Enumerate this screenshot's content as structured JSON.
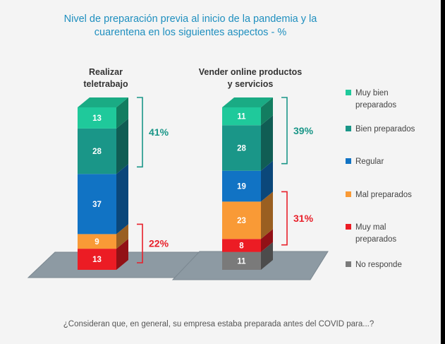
{
  "title_line1": "Nivel de preparación previa al inicio de la pandemia y la",
  "title_line2": "cuarentena en los siguientes aspectos - %",
  "question": "¿Consideran que, en general, su empresa estaba preparada antes del COVID para...?",
  "chart_data": {
    "type": "bar",
    "stacked": true,
    "three_d": true,
    "categories": [
      {
        "line1": "Realizar",
        "line2": "teletrabajo"
      },
      {
        "line1": "Vender online productos",
        "line2": "y servicios"
      }
    ],
    "series": [
      {
        "name": "Muy bien preparados",
        "legend_lines": [
          "Muy bien",
          "preparados"
        ],
        "color": "#1fc99b",
        "values": [
          13,
          11
        ]
      },
      {
        "name": "Bien preparados",
        "legend_lines": [
          "Bien preparados"
        ],
        "color": "#1a9688",
        "values": [
          28,
          28
        ]
      },
      {
        "name": "Regular",
        "legend_lines": [
          "Regular"
        ],
        "color": "#1173c4",
        "values": [
          37,
          19
        ]
      },
      {
        "name": "Mal preparados",
        "legend_lines": [
          "Mal preparados"
        ],
        "color": "#f99a36",
        "values": [
          9,
          23
        ]
      },
      {
        "name": "Muy mal preparados",
        "legend_lines": [
          "Muy mal",
          "preparados"
        ],
        "color": "#ec1c24",
        "values": [
          13,
          8
        ]
      },
      {
        "name": "No responde",
        "legend_lines": [
          "No responde"
        ],
        "color": "#7a7a7a",
        "values": [
          0,
          11
        ]
      }
    ],
    "annotations": [
      {
        "bar": 0,
        "group": "positive",
        "label": "41%",
        "color": "#1a9688"
      },
      {
        "bar": 0,
        "group": "negative",
        "label": "22%",
        "color": "#e8202a"
      },
      {
        "bar": 1,
        "group": "positive",
        "label": "39%",
        "color": "#1a9688"
      },
      {
        "bar": 1,
        "group": "negative",
        "label": "31%",
        "color": "#e8202a"
      }
    ],
    "legend_position": "right",
    "grid": false
  }
}
